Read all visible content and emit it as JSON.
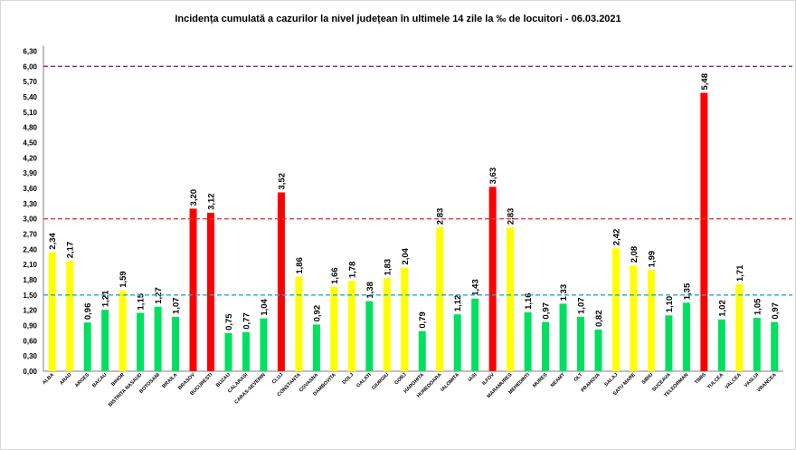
{
  "chart_data": {
    "type": "bar",
    "title": "Incidența cumulată a cazurilor la nivel județean în ultimele 14 zile la ‰ de locuitori - 06.03.2021",
    "xlabel": "",
    "ylabel": "",
    "ylim": [
      0,
      6.3
    ],
    "y_ticks": [
      "0,00",
      "0,30",
      "0,60",
      "0,90",
      "1,20",
      "1,50",
      "1,80",
      "2,10",
      "2,40",
      "2,70",
      "3,00",
      "3,30",
      "3,60",
      "3,90",
      "4,20",
      "4,50",
      "4,80",
      "5,10",
      "5,40",
      "5,70",
      "6,00",
      "6,30"
    ],
    "grid": false,
    "legend": "none",
    "categories": [
      "ALBA",
      "ARAD",
      "ARGES",
      "BACAU",
      "BIHOR",
      "BISTRITA NASAUD",
      "BOTOSANI",
      "BRAILA",
      "BRASOV",
      "BUCURESTI",
      "BUZAU",
      "CALARASI",
      "CARAS-SEVERIN",
      "CLUJ",
      "CONSTANTA",
      "COVASNA",
      "DAMBOVITA",
      "DOLJ",
      "GALATI",
      "GIURGIU",
      "GORJ",
      "HARGHITA",
      "HUNEDOARA",
      "IALOMITA",
      "IASI",
      "ILFOV",
      "MARAMURES",
      "MEHEDINTI",
      "MURES",
      "NEAMT",
      "OLT",
      "PRAHOVA",
      "SALAJ",
      "SATU MARE",
      "SIBIU",
      "SUCEAVA",
      "TELEORMAN",
      "TIMIS",
      "TULCEA",
      "VALCEA",
      "VASLUI",
      "VRANCEA"
    ],
    "values": [
      2.34,
      2.17,
      0.96,
      1.21,
      1.59,
      1.15,
      1.27,
      1.07,
      3.2,
      3.12,
      0.75,
      0.77,
      1.04,
      3.52,
      1.86,
      0.92,
      1.66,
      1.78,
      1.38,
      1.83,
      2.04,
      0.79,
      2.83,
      1.12,
      1.43,
      3.63,
      2.83,
      1.16,
      0.97,
      1.33,
      1.07,
      0.82,
      2.42,
      2.08,
      1.99,
      1.1,
      1.35,
      5.48,
      1.02,
      1.71,
      1.05,
      0.97
    ],
    "value_labels": [
      "2,34",
      "2,17",
      "0,96",
      "1,21",
      "1,59",
      "1,15",
      "1,27",
      "1,07",
      "3,20",
      "3,12",
      "0,75",
      "0,77",
      "1,04",
      "3,52",
      "1,86",
      "0,92",
      "1,66",
      "1,78",
      "1,38",
      "1,83",
      "2,04",
      "0,79",
      "2,83",
      "1,12",
      "1,43",
      "3,63",
      "2,83",
      "1,16",
      "0,97",
      "1,33",
      "1,07",
      "0,82",
      "2,42",
      "2,08",
      "1,99",
      "1,10",
      "1,35",
      "5,48",
      "1,02",
      "1,71",
      "1,05",
      "0,97"
    ],
    "thresholds": [
      {
        "value": 6.0,
        "color": "#7030a0"
      },
      {
        "value": 3.0,
        "color": "#e03c3c"
      },
      {
        "value": 1.5,
        "color": "#2aa6c8"
      }
    ],
    "bar_colors": {
      "green": "#00e060",
      "yellow": "#ffff00",
      "red": "#ff0000"
    }
  }
}
